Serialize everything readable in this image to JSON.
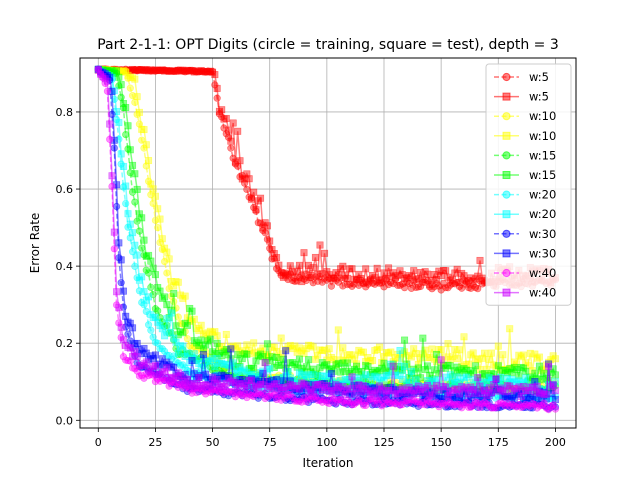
{
  "chart_data": {
    "type": "line",
    "title": "Part 2-1-1: OPT Digits (circle = training, square = test), depth = 3",
    "xlabel": "Iteration",
    "ylabel": "Error Rate",
    "xlim": [
      -8,
      209
    ],
    "ylim": [
      -0.02,
      0.94
    ],
    "xticks": [
      0,
      25,
      50,
      75,
      100,
      125,
      150,
      175,
      200
    ],
    "yticks": [
      0.0,
      0.2,
      0.4,
      0.6,
      0.8
    ],
    "ytick_labels": [
      "0.0",
      "0.2",
      "0.4",
      "0.6",
      "0.8"
    ],
    "grid": true,
    "legend_position": "top-right",
    "n_iterations": 201,
    "markers": {
      "train": "circle",
      "test": "square"
    },
    "series": [
      {
        "name": "w:5",
        "split": "train",
        "marker": "circle",
        "linestyle": "dashed",
        "color": "#ff0000",
        "knots": [
          [
            0,
            0.91
          ],
          [
            50,
            0.905
          ],
          [
            53,
            0.8
          ],
          [
            60,
            0.67
          ],
          [
            70,
            0.52
          ],
          [
            78,
            0.4
          ],
          [
            82,
            0.37
          ],
          [
            100,
            0.36
          ],
          [
            150,
            0.35
          ],
          [
            200,
            0.36
          ]
        ],
        "noise": 0.012
      },
      {
        "name": "w:5",
        "split": "test",
        "marker": "square",
        "linestyle": "solid",
        "color": "#ff0000",
        "knots": [
          [
            0,
            0.91
          ],
          [
            50,
            0.905
          ],
          [
            53,
            0.82
          ],
          [
            60,
            0.69
          ],
          [
            70,
            0.55
          ],
          [
            78,
            0.43
          ],
          [
            82,
            0.38
          ],
          [
            100,
            0.38
          ],
          [
            150,
            0.37
          ],
          [
            200,
            0.38
          ]
        ],
        "noise": 0.022
      },
      {
        "name": "w:10",
        "split": "train",
        "marker": "circle",
        "linestyle": "dashed",
        "color": "#ffff00",
        "knots": [
          [
            0,
            0.91
          ],
          [
            12,
            0.905
          ],
          [
            15,
            0.85
          ],
          [
            20,
            0.7
          ],
          [
            25,
            0.52
          ],
          [
            32,
            0.32
          ],
          [
            40,
            0.2
          ],
          [
            60,
            0.12
          ],
          [
            100,
            0.1
          ],
          [
            150,
            0.09
          ],
          [
            200,
            0.09
          ]
        ],
        "noise": 0.01
      },
      {
        "name": "w:10",
        "split": "test",
        "marker": "square",
        "linestyle": "solid",
        "color": "#ffff00",
        "knots": [
          [
            0,
            0.91
          ],
          [
            12,
            0.905
          ],
          [
            15,
            0.87
          ],
          [
            20,
            0.73
          ],
          [
            25,
            0.56
          ],
          [
            32,
            0.38
          ],
          [
            40,
            0.27
          ],
          [
            60,
            0.18
          ],
          [
            100,
            0.17
          ],
          [
            150,
            0.16
          ],
          [
            200,
            0.15
          ]
        ],
        "noise": 0.025
      },
      {
        "name": "w:15",
        "split": "train",
        "marker": "circle",
        "linestyle": "dashed",
        "color": "#00ff00",
        "knots": [
          [
            0,
            0.91
          ],
          [
            8,
            0.9
          ],
          [
            11,
            0.8
          ],
          [
            15,
            0.6
          ],
          [
            20,
            0.42
          ],
          [
            25,
            0.3
          ],
          [
            35,
            0.18
          ],
          [
            60,
            0.11
          ],
          [
            100,
            0.09
          ],
          [
            200,
            0.08
          ]
        ],
        "noise": 0.012
      },
      {
        "name": "w:15",
        "split": "test",
        "marker": "square",
        "linestyle": "solid",
        "color": "#00ff00",
        "knots": [
          [
            0,
            0.91
          ],
          [
            8,
            0.905
          ],
          [
            11,
            0.84
          ],
          [
            15,
            0.66
          ],
          [
            20,
            0.47
          ],
          [
            25,
            0.35
          ],
          [
            35,
            0.24
          ],
          [
            60,
            0.16
          ],
          [
            100,
            0.13
          ],
          [
            200,
            0.12
          ]
        ],
        "noise": 0.022
      },
      {
        "name": "w:20",
        "split": "train",
        "marker": "circle",
        "linestyle": "dashed",
        "color": "#00ffff",
        "knots": [
          [
            0,
            0.91
          ],
          [
            6,
            0.88
          ],
          [
            9,
            0.72
          ],
          [
            13,
            0.5
          ],
          [
            18,
            0.33
          ],
          [
            25,
            0.2
          ],
          [
            40,
            0.12
          ],
          [
            80,
            0.08
          ],
          [
            200,
            0.06
          ]
        ],
        "noise": 0.01
      },
      {
        "name": "w:20",
        "split": "test",
        "marker": "square",
        "linestyle": "solid",
        "color": "#00ffff",
        "knots": [
          [
            0,
            0.91
          ],
          [
            6,
            0.89
          ],
          [
            9,
            0.76
          ],
          [
            13,
            0.55
          ],
          [
            18,
            0.38
          ],
          [
            25,
            0.25
          ],
          [
            40,
            0.16
          ],
          [
            80,
            0.11
          ],
          [
            200,
            0.09
          ]
        ],
        "noise": 0.018
      },
      {
        "name": "w:30",
        "split": "train",
        "marker": "circle",
        "linestyle": "dashed",
        "color": "#0000ff",
        "knots": [
          [
            0,
            0.91
          ],
          [
            5,
            0.88
          ],
          [
            7,
            0.7
          ],
          [
            9,
            0.42
          ],
          [
            12,
            0.24
          ],
          [
            18,
            0.14
          ],
          [
            40,
            0.08
          ],
          [
            100,
            0.05
          ],
          [
            200,
            0.035
          ]
        ],
        "noise": 0.008
      },
      {
        "name": "w:30",
        "split": "test",
        "marker": "square",
        "linestyle": "solid",
        "color": "#0000ff",
        "knots": [
          [
            0,
            0.91
          ],
          [
            5,
            0.89
          ],
          [
            7,
            0.74
          ],
          [
            9,
            0.47
          ],
          [
            12,
            0.28
          ],
          [
            18,
            0.18
          ],
          [
            40,
            0.11
          ],
          [
            100,
            0.08
          ],
          [
            200,
            0.06
          ]
        ],
        "noise": 0.015
      },
      {
        "name": "w:40",
        "split": "train",
        "marker": "circle",
        "linestyle": "dashed",
        "color": "#ff00ff",
        "knots": [
          [
            0,
            0.91
          ],
          [
            4,
            0.86
          ],
          [
            6,
            0.6
          ],
          [
            8,
            0.3
          ],
          [
            11,
            0.17
          ],
          [
            18,
            0.12
          ],
          [
            40,
            0.08
          ],
          [
            100,
            0.05
          ],
          [
            200,
            0.035
          ]
        ],
        "noise": 0.009
      },
      {
        "name": "w:40",
        "split": "test",
        "marker": "square",
        "linestyle": "solid",
        "color": "#cc00ff",
        "knots": [
          [
            0,
            0.91
          ],
          [
            4,
            0.87
          ],
          [
            6,
            0.64
          ],
          [
            8,
            0.34
          ],
          [
            11,
            0.2
          ],
          [
            18,
            0.15
          ],
          [
            40,
            0.1
          ],
          [
            100,
            0.08
          ],
          [
            200,
            0.075
          ]
        ],
        "noise": 0.014
      }
    ]
  }
}
